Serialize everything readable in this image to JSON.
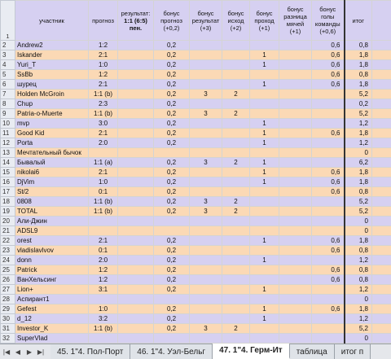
{
  "headers": {
    "participant": "участник",
    "forecast": "прогноз",
    "result": "результат:",
    "result_score": "1:1 (6:5)",
    "result_note": "пен.",
    "b_forecast": "бонус прогноз (+0,2)",
    "b_result": "бонус результат (+3)",
    "b_outcome": "бонус исход (+2)",
    "b_pass": "бонус проход (+1)",
    "b_diff": "бонус разница мячей (+1)",
    "b_goals": "бонус голы команды (+0,6)",
    "total": "итог"
  },
  "rows": [
    {
      "n": "2",
      "name": "Andrew2",
      "f": "1:2",
      "bf": "0,2",
      "br": "",
      "bo": "",
      "bp": "",
      "bd": "",
      "bg": "0,6",
      "t": "0,8",
      "c": "pur"
    },
    {
      "n": "3",
      "name": "Iskander",
      "f": "2:1",
      "bf": "0,2",
      "br": "",
      "bo": "",
      "bp": "1",
      "bd": "",
      "bg": "0,6",
      "t": "1,8",
      "c": "ora"
    },
    {
      "n": "4",
      "name": "Yuri_T",
      "f": "1:0",
      "bf": "0,2",
      "br": "",
      "bo": "",
      "bp": "1",
      "bd": "",
      "bg": "0,6",
      "t": "1,8",
      "c": "pur"
    },
    {
      "n": "5",
      "name": "SsBb",
      "f": "1:2",
      "bf": "0,2",
      "br": "",
      "bo": "",
      "bp": "",
      "bd": "",
      "bg": "0,6",
      "t": "0,8",
      "c": "ora"
    },
    {
      "n": "6",
      "name": "шурец",
      "f": "2:1",
      "bf": "0,2",
      "br": "",
      "bo": "",
      "bp": "1",
      "bd": "",
      "bg": "0,6",
      "t": "1,8",
      "c": "pur"
    },
    {
      "n": "7",
      "name": "Holden McGroin",
      "f": "1:1 (b)",
      "bf": "0,2",
      "br": "3",
      "bo": "2",
      "bp": "",
      "bd": "",
      "bg": "",
      "t": "5,2",
      "c": "ora"
    },
    {
      "n": "8",
      "name": "Chup",
      "f": "2:3",
      "bf": "0,2",
      "br": "",
      "bo": "",
      "bp": "",
      "bd": "",
      "bg": "",
      "t": "0,2",
      "c": "pur"
    },
    {
      "n": "9",
      "name": "Patria-o-Muerte",
      "f": "1:1 (b)",
      "bf": "0,2",
      "br": "3",
      "bo": "2",
      "bp": "",
      "bd": "",
      "bg": "",
      "t": "5,2",
      "c": "ora"
    },
    {
      "n": "10",
      "name": "mvp",
      "f": "3:0",
      "bf": "0,2",
      "br": "",
      "bo": "",
      "bp": "1",
      "bd": "",
      "bg": "",
      "t": "1,2",
      "c": "pur"
    },
    {
      "n": "11",
      "name": "Good Kid",
      "f": "2:1",
      "bf": "0,2",
      "br": "",
      "bo": "",
      "bp": "1",
      "bd": "",
      "bg": "0,6",
      "t": "1,8",
      "c": "ora"
    },
    {
      "n": "12",
      "name": "Porta",
      "f": "2:0",
      "bf": "0,2",
      "br": "",
      "bo": "",
      "bp": "1",
      "bd": "",
      "bg": "",
      "t": "1,2",
      "c": "pur"
    },
    {
      "n": "13",
      "name": "Мечтательный бычок",
      "f": "",
      "bf": "",
      "br": "",
      "bo": "",
      "bp": "",
      "bd": "",
      "bg": "",
      "t": "0",
      "c": "ora"
    },
    {
      "n": "14",
      "name": "Бывалый",
      "f": "1:1 (a)",
      "bf": "0,2",
      "br": "3",
      "bo": "2",
      "bp": "1",
      "bd": "",
      "bg": "",
      "t": "6,2",
      "c": "pur"
    },
    {
      "n": "15",
      "name": "nikolai6",
      "f": "2:1",
      "bf": "0,2",
      "br": "",
      "bo": "",
      "bp": "1",
      "bd": "",
      "bg": "0,6",
      "t": "1,8",
      "c": "ora"
    },
    {
      "n": "16",
      "name": "DjVim",
      "f": "1:0",
      "bf": "0,2",
      "br": "",
      "bo": "",
      "bp": "1",
      "bd": "",
      "bg": "0,6",
      "t": "1,8",
      "c": "pur"
    },
    {
      "n": "17",
      "name": "St/2",
      "f": "0:1",
      "bf": "0,2",
      "br": "",
      "bo": "",
      "bp": "",
      "bd": "",
      "bg": "0,6",
      "t": "0,8",
      "c": "ora"
    },
    {
      "n": "18",
      "name": "0808",
      "f": "1:1 (b)",
      "bf": "0,2",
      "br": "3",
      "bo": "2",
      "bp": "",
      "bd": "",
      "bg": "",
      "t": "5,2",
      "c": "pur"
    },
    {
      "n": "19",
      "name": "TOTAL",
      "f": "1:1 (b)",
      "bf": "0,2",
      "br": "3",
      "bo": "2",
      "bp": "",
      "bd": "",
      "bg": "",
      "t": "5,2",
      "c": "ora"
    },
    {
      "n": "20",
      "name": "Али-Джин",
      "f": "",
      "bf": "",
      "br": "",
      "bo": "",
      "bp": "",
      "bd": "",
      "bg": "",
      "t": "0",
      "c": "pur"
    },
    {
      "n": "21",
      "name": "ADSL9",
      "f": "",
      "bf": "",
      "br": "",
      "bo": "",
      "bp": "",
      "bd": "",
      "bg": "",
      "t": "0",
      "c": "ora"
    },
    {
      "n": "22",
      "name": "orest",
      "f": "2:1",
      "bf": "0,2",
      "br": "",
      "bo": "",
      "bp": "1",
      "bd": "",
      "bg": "0,6",
      "t": "1,8",
      "c": "pur"
    },
    {
      "n": "23",
      "name": "vladislavlvov",
      "f": "0:1",
      "bf": "0,2",
      "br": "",
      "bo": "",
      "bp": "",
      "bd": "",
      "bg": "0,6",
      "t": "0,8",
      "c": "ora"
    },
    {
      "n": "24",
      "name": "donn",
      "f": "2:0",
      "bf": "0,2",
      "br": "",
      "bo": "",
      "bp": "1",
      "bd": "",
      "bg": "",
      "t": "1,2",
      "c": "pur"
    },
    {
      "n": "25",
      "name": "Patrick",
      "f": "1:2",
      "bf": "0,2",
      "br": "",
      "bo": "",
      "bp": "",
      "bd": "",
      "bg": "0,6",
      "t": "0,8",
      "c": "ora"
    },
    {
      "n": "26",
      "name": "ВанХельсинг",
      "f": "1:2",
      "bf": "0,2",
      "br": "",
      "bo": "",
      "bp": "",
      "bd": "",
      "bg": "0,6",
      "t": "0,8",
      "c": "pur"
    },
    {
      "n": "27",
      "name": "Lion+",
      "f": "3:1",
      "bf": "0,2",
      "br": "",
      "bo": "",
      "bp": "1",
      "bd": "",
      "bg": "",
      "t": "1,2",
      "c": "ora"
    },
    {
      "n": "28",
      "name": "Аспирант1",
      "f": "",
      "bf": "",
      "br": "",
      "bo": "",
      "bp": "",
      "bd": "",
      "bg": "",
      "t": "0",
      "c": "pur"
    },
    {
      "n": "29",
      "name": "Gefest",
      "f": "1:0",
      "bf": "0,2",
      "br": "",
      "bo": "",
      "bp": "1",
      "bd": "",
      "bg": "0,6",
      "t": "1,8",
      "c": "ora"
    },
    {
      "n": "30",
      "name": "d_12",
      "f": "3:2",
      "bf": "0,2",
      "br": "",
      "bo": "",
      "bp": "1",
      "bd": "",
      "bg": "",
      "t": "1,2",
      "c": "pur"
    },
    {
      "n": "31",
      "name": "Investor_K",
      "f": "1:1 (b)",
      "bf": "0,2",
      "br": "3",
      "bo": "2",
      "bp": "",
      "bd": "",
      "bg": "",
      "t": "5,2",
      "c": "ora"
    },
    {
      "n": "32",
      "name": "SuperVlad",
      "f": "",
      "bf": "",
      "br": "",
      "bo": "",
      "bp": "",
      "bd": "",
      "bg": "",
      "t": "0",
      "c": "pur"
    },
    {
      "n": "33",
      "name": "",
      "f": "",
      "bf": "",
      "br": "",
      "bo": "",
      "bp": "",
      "bd": "",
      "bg": "",
      "t": "",
      "c": "plain"
    }
  ],
  "tabs": [
    "45. 1\"4. Пол-Порт",
    "46. 1\"4. Уэл-Бельг",
    "47. 1\"4. Герм-Ит",
    "таблица",
    "итог п"
  ],
  "active_tab": 2,
  "colors": {
    "purple_row": "#d6d0f1",
    "orange_row": "#fbd9b5"
  }
}
